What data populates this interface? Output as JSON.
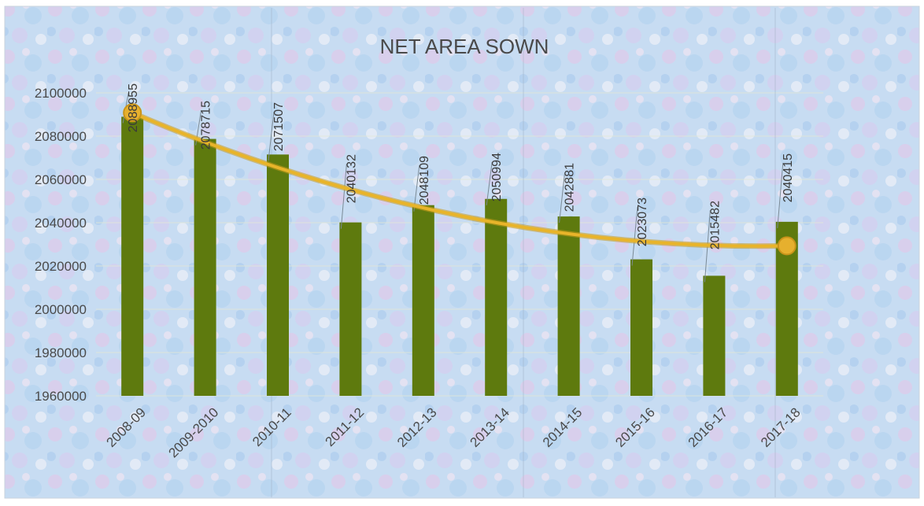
{
  "chart_data": {
    "type": "bar",
    "title": "NET AREA SOWN",
    "categories": [
      "2008-09",
      "2009-2010",
      "2010-11",
      "2011-12",
      "2012-13",
      "2013-14",
      "2014-15",
      "2015-16",
      "2016-17",
      "2017-18"
    ],
    "values": [
      2088955,
      2078715,
      2071507,
      2040132,
      2048109,
      2050994,
      2042881,
      2023073,
      2015482,
      2040415
    ],
    "data_labels": [
      "2088955",
      "2078715",
      "2071507",
      "2040132",
      "2048109",
      "2050994",
      "2042881",
      "2023073",
      "2015482",
      "2040415"
    ],
    "yticks": [
      "1960000",
      "1980000",
      "2000000",
      "2020000",
      "2040000",
      "2060000",
      "2080000",
      "2100000"
    ],
    "ylim": [
      1960000,
      2100000
    ],
    "trendline": {
      "type": "polynomial",
      "start_value": 2090800,
      "end_value": 2029300,
      "color": "#E8B42A"
    },
    "bar_color": "#5E7A0E",
    "grid": true,
    "xlabel": "",
    "ylabel": ""
  }
}
